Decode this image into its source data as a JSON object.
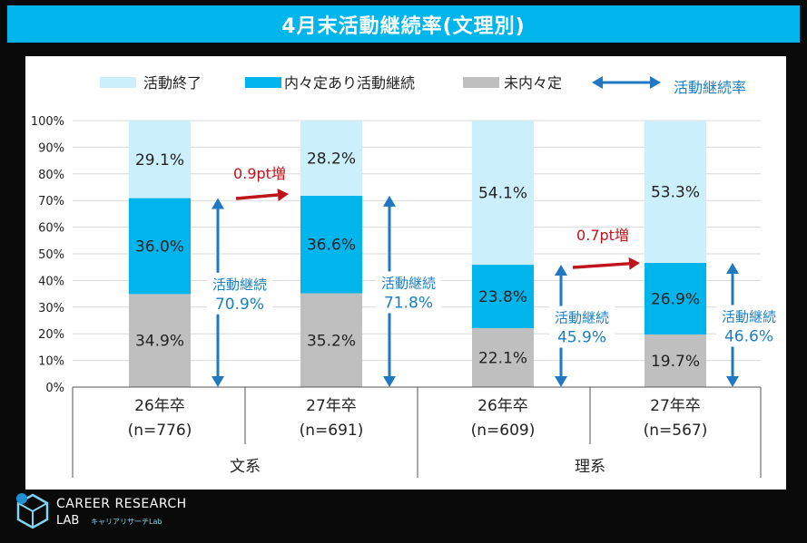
{
  "title": "4月末活動継続率(文理別)",
  "logo": {
    "line1": "CAREER RESEARCH",
    "line2": "LAB",
    "line3": "キャリアリサーチLab"
  },
  "colors": {
    "title_bg": "#00b4ec",
    "ended": "#ccf0fb",
    "continuing": "#00b4ec",
    "no_offer": "#bfbfbf",
    "arrow_blue": "#1f78c1",
    "arrow_red": "#c0141b",
    "accent_text": "#1a7fc1"
  },
  "chart_data": {
    "type": "bar",
    "stacked": true,
    "categories": [
      "26年卒",
      "27年卒",
      "26年卒",
      "27年卒"
    ],
    "category_sub": [
      "(n=776)",
      "(n=691)",
      "(n=609)",
      "(n=567)"
    ],
    "groups": [
      {
        "label": "文系",
        "categories": [
          0,
          1
        ]
      },
      {
        "label": "理系",
        "categories": [
          2,
          3
        ]
      }
    ],
    "series": [
      {
        "name": "未内々定",
        "values": [
          34.9,
          35.2,
          22.1,
          19.7
        ],
        "color": "#bfbfbf"
      },
      {
        "name": "内々定あり活動継続",
        "values": [
          36.0,
          36.6,
          23.8,
          26.9
        ],
        "color": "#00b4ec"
      },
      {
        "name": "活動終了",
        "values": [
          29.1,
          28.2,
          54.1,
          53.3
        ],
        "color": "#ccf0fb"
      }
    ],
    "value_labels": [
      [
        "34.9%",
        "35.2%",
        "22.1%",
        "19.7%"
      ],
      [
        "36.0%",
        "36.6%",
        "23.8%",
        "26.9%"
      ],
      [
        "29.1%",
        "28.2%",
        "54.1%",
        "53.3%"
      ]
    ],
    "legend": [
      "活動終了",
      "内々定あり活動継続",
      "未内々定",
      "活動継続率"
    ],
    "legend_placement": "top",
    "continuation": {
      "label": "活動継続",
      "values": [
        "70.9%",
        "71.8%",
        "45.9%",
        "46.6%"
      ]
    },
    "changes": [
      "0.9pt増",
      "0.7pt増"
    ],
    "ylim": [
      0,
      100
    ],
    "yticks": [
      "0%",
      "10%",
      "20%",
      "30%",
      "40%",
      "50%",
      "60%",
      "70%",
      "80%",
      "90%",
      "100%"
    ],
    "grid": true
  }
}
